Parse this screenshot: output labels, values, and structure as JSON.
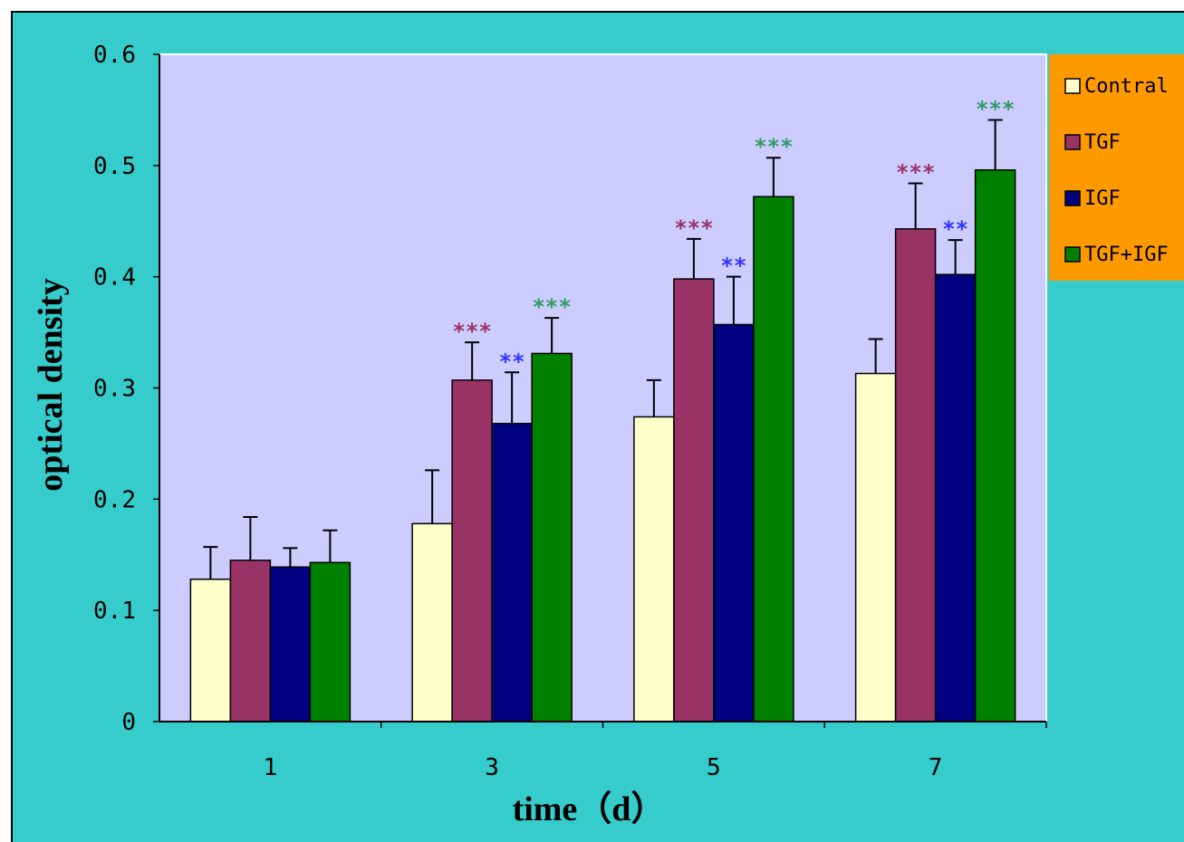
{
  "chart_data": {
    "type": "bar",
    "title": "",
    "xlabel": "time（d）",
    "ylabel": "optical density",
    "categories": [
      "1",
      "3",
      "5",
      "7"
    ],
    "ylim": [
      0,
      0.6
    ],
    "yticks": [
      "0",
      "0.1",
      "0.2",
      "0.3",
      "0.4",
      "0.5",
      "0.6"
    ],
    "grid": false,
    "legend_position": "right",
    "series": [
      {
        "name": "Contral",
        "color": "#ffffcc",
        "values": [
          0.128,
          0.178,
          0.274,
          0.313
        ],
        "errors": [
          0.029,
          0.048,
          0.033,
          0.031
        ],
        "significance": [
          "",
          "",
          "",
          ""
        ],
        "sig_color": "#993366"
      },
      {
        "name": "TGF",
        "color": "#993366",
        "values": [
          0.145,
          0.307,
          0.398,
          0.443
        ],
        "errors": [
          0.039,
          0.034,
          0.036,
          0.041
        ],
        "significance": [
          "",
          "***",
          "***",
          "***"
        ],
        "sig_color": "#993366"
      },
      {
        "name": "IGF",
        "color": "#000080",
        "values": [
          0.139,
          0.268,
          0.357,
          0.402
        ],
        "errors": [
          0.017,
          0.046,
          0.043,
          0.031
        ],
        "significance": [
          "",
          "**",
          "**",
          "**"
        ],
        "sig_color": "#3333ff"
      },
      {
        "name": "TGF+IGF",
        "color": "#008000",
        "values": [
          0.143,
          0.331,
          0.472,
          0.496
        ],
        "errors": [
          0.029,
          0.032,
          0.035,
          0.045
        ],
        "significance": [
          "",
          "***",
          "***",
          "***"
        ],
        "sig_color": "#339966"
      }
    ]
  },
  "colors": {
    "frame_background": "#36cccc",
    "plot_background": "#ccccff",
    "legend_background": "#ff9900"
  }
}
